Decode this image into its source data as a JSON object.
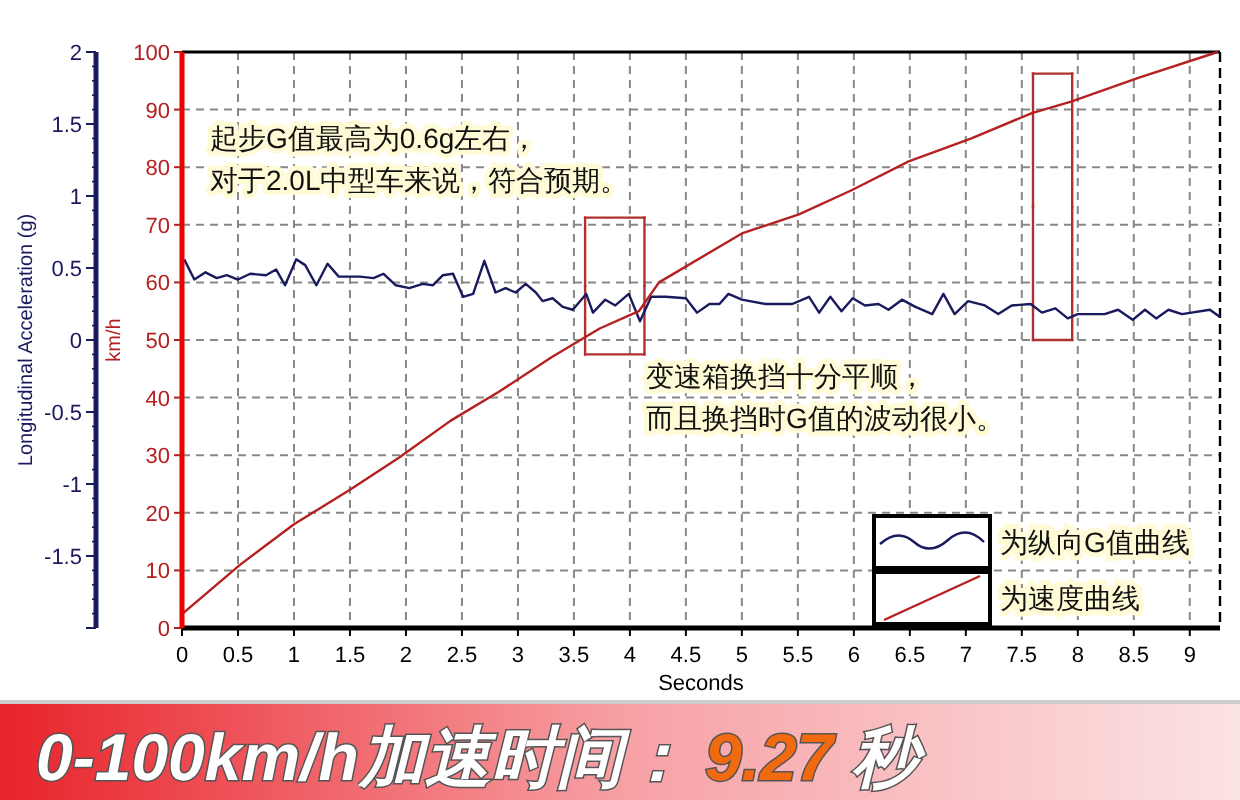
{
  "chart_data": {
    "type": "line",
    "title": "0-100km/h加速时间：9.27 秒",
    "xlabel": "Seconds",
    "ylabel": "Longitudinal Acceleration (g)",
    "y2label": "km/h",
    "annotations": [
      "起步G值最高为0.6g左右，",
      "对于2.0L中型车来说，符合预期。",
      "变速箱换挡十分平顺，",
      "而且换挡时G值的波动很小。"
    ],
    "xlim": [
      0,
      9.27
    ],
    "xticks": [
      0,
      0.5,
      1,
      1.5,
      2,
      2.5,
      3,
      3.5,
      4,
      4.5,
      5,
      5.5,
      6,
      6.5,
      7,
      7.5,
      8,
      8.5,
      9
    ],
    "ylim": [
      -2,
      2
    ],
    "yticks": [
      {
        "value": -2,
        "label": null
      },
      -1.5,
      -1,
      -0.5,
      0,
      0.5,
      1,
      1.5,
      2
    ],
    "y2lim": [
      0,
      100
    ],
    "y2ticks": [
      0,
      10,
      20,
      30,
      40,
      50,
      60,
      70,
      80,
      90,
      100
    ],
    "grid": true,
    "legend": "bottom right",
    "series": [
      {
        "name": "为纵向G值曲线",
        "color": "#1a1a5e",
        "axis": "y",
        "x": [
          0.02,
          0.11,
          0.21,
          0.31,
          0.4,
          0.5,
          0.61,
          0.75,
          0.84,
          0.92,
          1.02,
          1.1,
          1.2,
          1.3,
          1.4,
          1.59,
          1.71,
          1.8,
          1.91,
          2.03,
          2.15,
          2.24,
          2.33,
          2.42,
          2.51,
          2.6,
          2.7,
          2.8,
          2.89,
          2.98,
          3.07,
          3.16,
          3.22,
          3.31,
          3.4,
          3.49,
          3.61,
          3.67,
          3.78,
          3.87,
          3.99,
          4.09,
          4.19,
          4.32,
          4.5,
          4.6,
          4.71,
          4.8,
          4.88,
          5.0,
          5.21,
          5.45,
          5.6,
          5.69,
          5.79,
          5.89,
          5.99,
          6.1,
          6.22,
          6.31,
          6.43,
          6.55,
          6.7,
          6.8,
          6.9,
          7.02,
          7.17,
          7.29,
          7.41,
          7.58,
          7.68,
          7.8,
          7.91,
          8.0,
          8.24,
          8.36,
          8.49,
          8.6,
          8.7,
          8.81,
          8.93,
          9.18,
          9.27
        ],
        "values": [
          0.56,
          0.42,
          0.47,
          0.43,
          0.45,
          0.42,
          0.46,
          0.45,
          0.49,
          0.38,
          0.56,
          0.52,
          0.38,
          0.53,
          0.44,
          0.44,
          0.43,
          0.46,
          0.38,
          0.36,
          0.39,
          0.38,
          0.45,
          0.46,
          0.3,
          0.32,
          0.55,
          0.33,
          0.36,
          0.33,
          0.39,
          0.33,
          0.27,
          0.29,
          0.23,
          0.21,
          0.32,
          0.19,
          0.28,
          0.24,
          0.32,
          0.13,
          0.3,
          0.3,
          0.29,
          0.19,
          0.25,
          0.25,
          0.32,
          0.28,
          0.25,
          0.25,
          0.3,
          0.19,
          0.3,
          0.2,
          0.29,
          0.24,
          0.25,
          0.21,
          0.28,
          0.23,
          0.18,
          0.32,
          0.18,
          0.27,
          0.24,
          0.18,
          0.24,
          0.25,
          0.19,
          0.22,
          0.15,
          0.18,
          0.18,
          0.21,
          0.14,
          0.21,
          0.15,
          0.21,
          0.18,
          0.21,
          0.16
        ]
      },
      {
        "name": "为速度曲线",
        "color": "#b52020",
        "axis": "y2",
        "x": [
          0,
          0.52,
          1.0,
          1.5,
          1.94,
          2.4,
          2.83,
          3.3,
          3.73,
          4.08,
          4.26,
          5.0,
          5.51,
          5.98,
          6.49,
          7.05,
          7.59,
          7.94,
          8.54,
          9.25
        ],
        "values": [
          2.4,
          11,
          18,
          24,
          29.6,
          36,
          41,
          47,
          52,
          55,
          60,
          68.5,
          71.8,
          76,
          81,
          85,
          89.4,
          91.4,
          95.5,
          100
        ]
      }
    ]
  }
}
